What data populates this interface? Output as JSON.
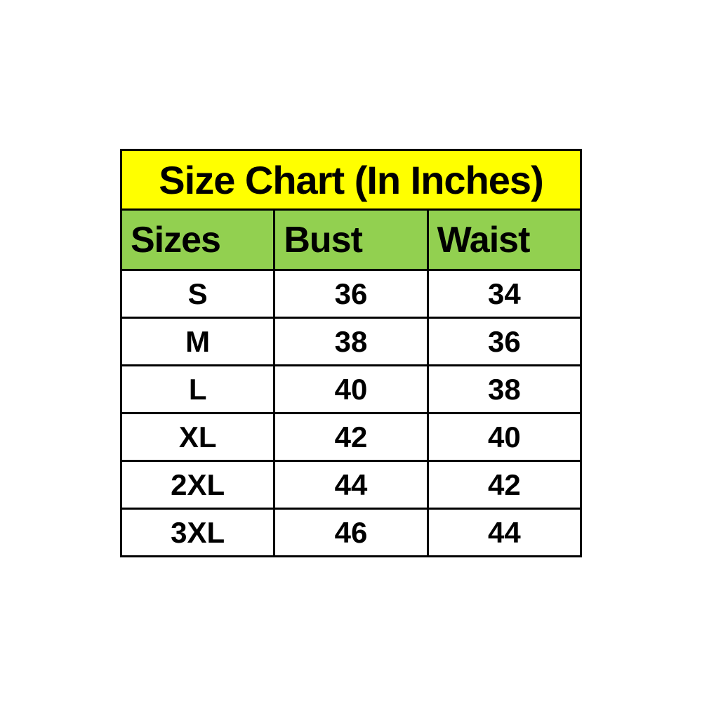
{
  "chart_data": {
    "type": "table",
    "title": "Size Chart (In Inches)",
    "columns": [
      "Sizes",
      "Bust",
      "Waist"
    ],
    "rows": [
      [
        "S",
        36,
        34
      ],
      [
        "M",
        38,
        36
      ],
      [
        "L",
        40,
        38
      ],
      [
        "XL",
        42,
        40
      ],
      [
        "2XL",
        44,
        42
      ],
      [
        "3XL",
        46,
        44
      ]
    ],
    "units": "inches"
  },
  "colors": {
    "title_bg": "#ffff00",
    "header_bg": "#92d050",
    "border": "#000000",
    "text": "#000000",
    "page_bg": "#ffffff"
  }
}
